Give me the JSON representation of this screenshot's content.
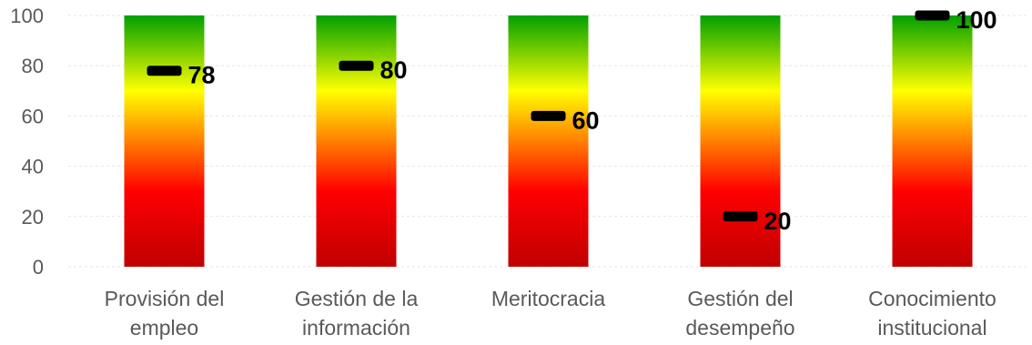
{
  "chart_data": {
    "type": "bar",
    "categories": [
      [
        "Provisión del",
        "empleo"
      ],
      [
        "Gestión de la",
        "información"
      ],
      [
        "Meritocracia"
      ],
      [
        "Gestión del",
        "desempeño"
      ],
      [
        "Conocimiento",
        "institucional"
      ]
    ],
    "range_max": [
      100,
      100,
      100,
      100,
      100
    ],
    "values": [
      78,
      80,
      60,
      20,
      100
    ],
    "value_labels": [
      "78",
      "80",
      "60",
      "20",
      "100"
    ],
    "ylim": [
      0,
      100
    ],
    "yticks": [
      0,
      20,
      40,
      60,
      80,
      100
    ],
    "ytick_labels": [
      "0",
      "20",
      "40",
      "60",
      "80",
      "100"
    ],
    "grid": true,
    "colors": {
      "gradient_top": "#00a000",
      "gradient_mid": "#ffff00",
      "gradient_low": "#ff0000",
      "gradient_bottom": "#c00000",
      "marker": "#000000",
      "axis_text": "#595959",
      "grid": "#e6e6e6"
    },
    "title": "",
    "xlabel": "",
    "ylabel": ""
  }
}
